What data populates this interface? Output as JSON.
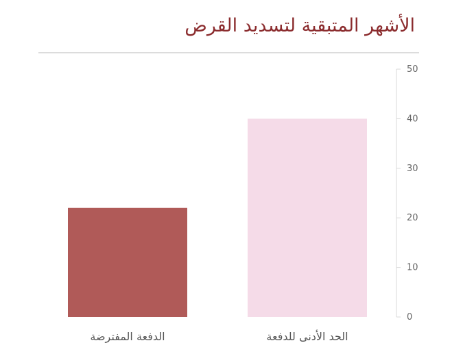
{
  "chart_data": {
    "type": "bar",
    "title": "الأشهر المتبقية لتسديد القرض",
    "categories": [
      "الحد الأدنى للدفعة",
      "الدفعة المفترضة"
    ],
    "values": [
      40,
      22
    ],
    "colors": [
      "#f5dbe8",
      "#b05a58"
    ],
    "ylim": [
      0,
      50
    ],
    "yticks": [
      0,
      10,
      20,
      30,
      40,
      50
    ],
    "y_axis_position": "right",
    "category_order": "right-to-left",
    "grid": false,
    "xlabel": "",
    "ylabel": ""
  }
}
